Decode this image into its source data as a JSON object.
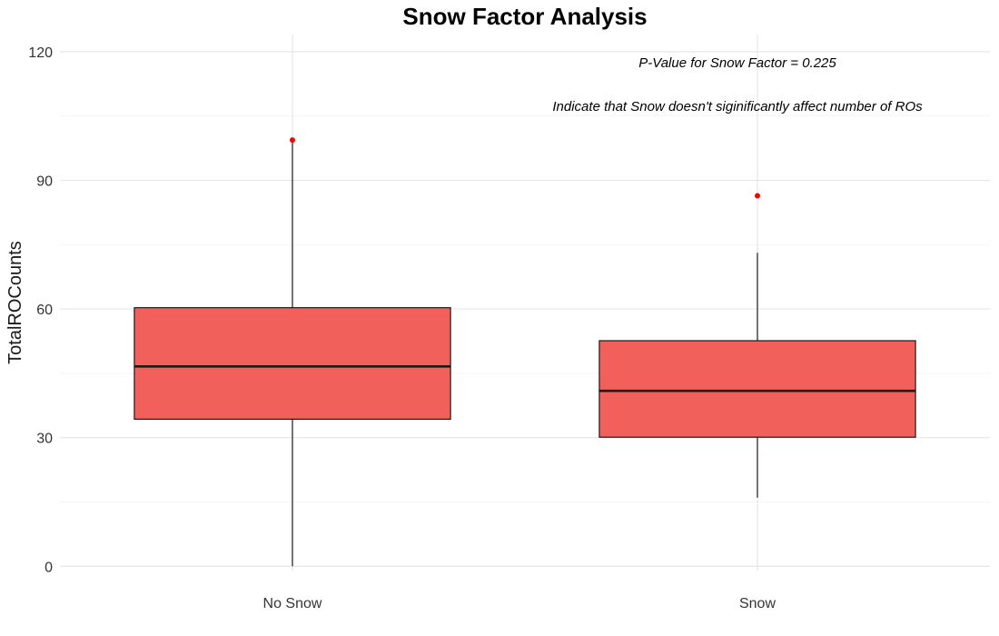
{
  "chart_data": {
    "type": "boxplot",
    "title": "Snow Factor Analysis",
    "xlabel": "",
    "ylabel": "TotalROCounts",
    "ylim": [
      -1,
      124
    ],
    "yticks": [
      0,
      30,
      60,
      90,
      120
    ],
    "grid": true,
    "categories": [
      "No Snow",
      "Snow"
    ],
    "boxes": [
      {
        "category": "No Snow",
        "min": 0,
        "q1": 34.3,
        "median": 46.6,
        "q3": 60.3,
        "max": 99.4,
        "outliers": [
          99.4
        ]
      },
      {
        "category": "Snow",
        "min": 16,
        "q1": 30.1,
        "median": 40.9,
        "q3": 52.6,
        "max": 73.1,
        "outliers": [
          86.4
        ]
      }
    ],
    "annotations": [
      "P-Value for Snow Factor =  0.225",
      "Indicate that Snow doesn't siginificantly affect number of ROs"
    ],
    "colors": {
      "box_fill": "#F2605C",
      "box_stroke": "#1a1a1a",
      "outlier": "#FF0000"
    }
  }
}
